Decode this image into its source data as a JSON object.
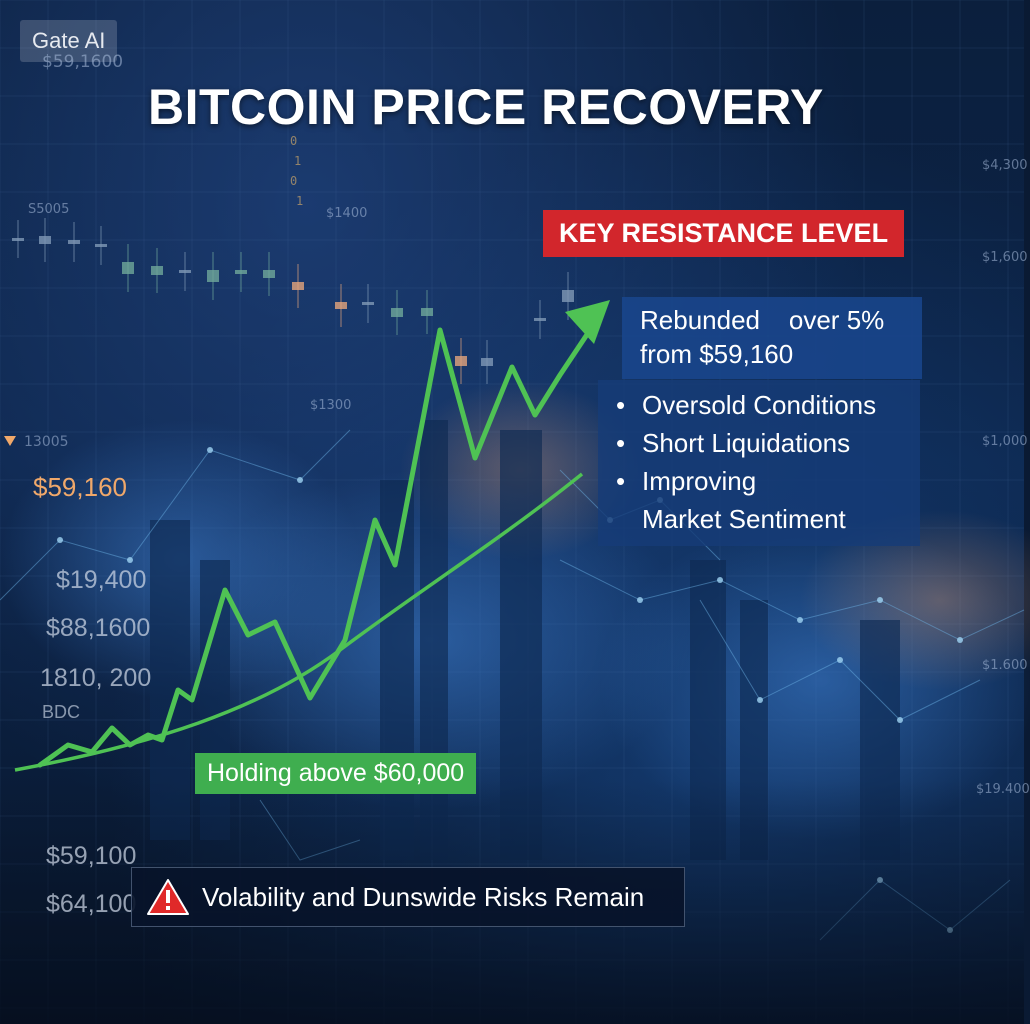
{
  "watermark": "Gate AI",
  "title": "BITCOIN PRICE RECOVERY",
  "resistance_label": "KEY RESISTANCE LEVEL",
  "rebound": {
    "line1": "Rebunded    over 5%",
    "line2": "from $59,160"
  },
  "reasons": [
    "Oversold Conditions",
    "Short Liquidations",
    "Improving",
    "Market Sentiment"
  ],
  "support_label": "Holding above $60,000",
  "risk": {
    "text": "Volability and Dunswide Risks Remain",
    "icon": "warning-triangle-icon",
    "icon_color": "#e02929"
  },
  "price_highlight": "$59,160",
  "background_labels": {
    "top_left": "$59,1600",
    "left_upper": "S5005",
    "center_upper": "$1400",
    "center_mid": "$1300",
    "left_marker": "13005",
    "left_1": "$19,400",
    "left_2": "$88,1600",
    "left_3": "1810, 200",
    "left_4": "BDC",
    "bottom_1": "$59,100",
    "bottom_2": "$64,100",
    "right_1": "$4,300",
    "right_2": "$1,600",
    "right_3": "$1,000",
    "right_4": "$1.600",
    "right_5": "$19.400"
  },
  "colors": {
    "trend_line": "#4fc254",
    "banner_red": "#d2262c",
    "info_box_blue": "#194689",
    "support_green": "#3fae4f",
    "price_orange": "#f0a86a",
    "background_navy": "#0b1f3d"
  }
}
